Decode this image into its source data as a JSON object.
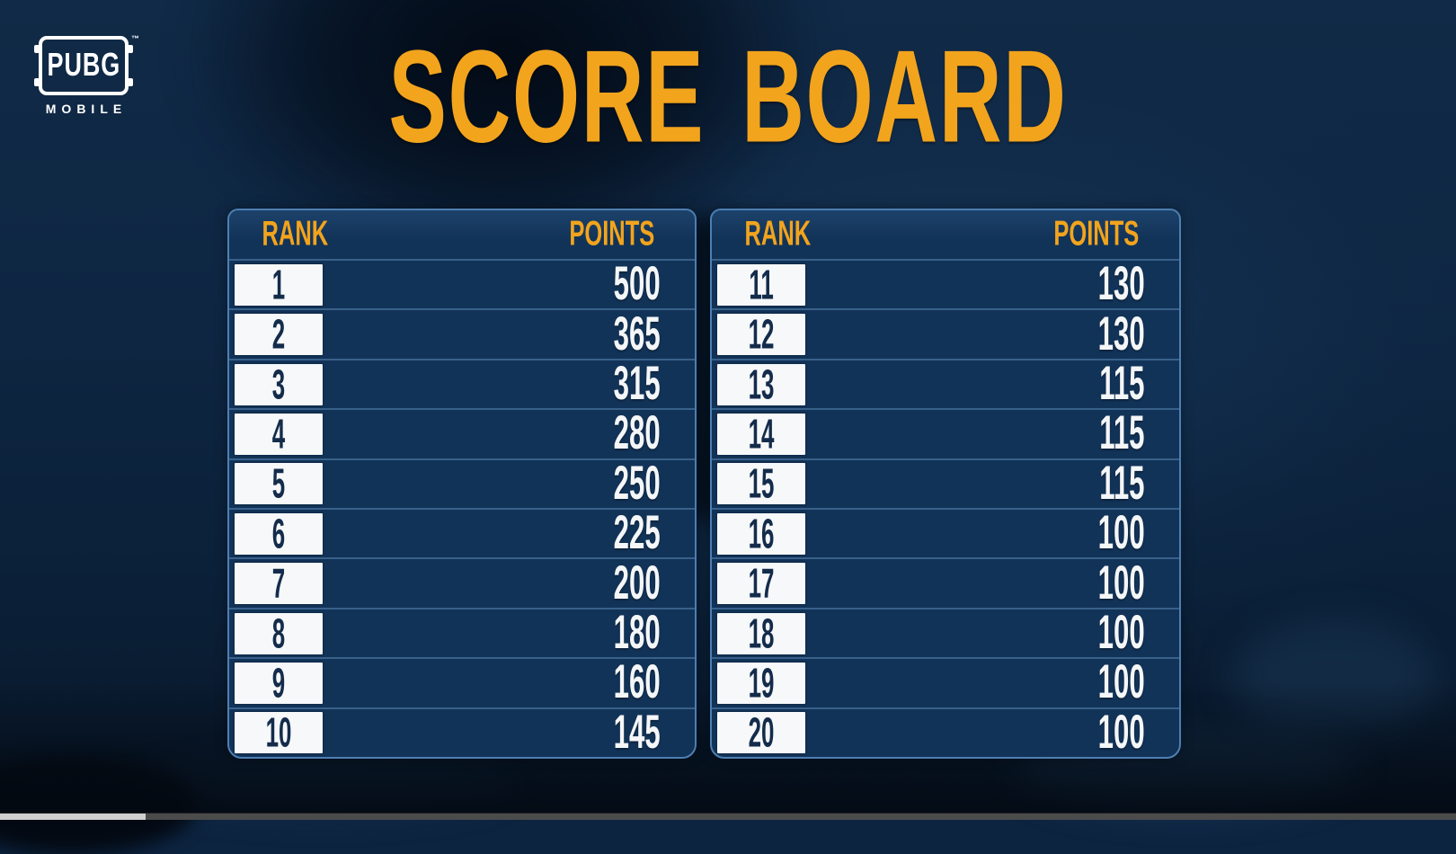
{
  "brand": {
    "logo_text": "PUBG",
    "logo_sub": "MOBILE",
    "trademark": "™"
  },
  "title": "SCORE BOARD",
  "colors": {
    "accent_orange": "#F2A41D",
    "table_bg": "#123358",
    "table_border": "#4D7FB3",
    "row_divider": "rgba(104,152,199,0.45)",
    "rank_text": "#142C4B",
    "points_text": "#F4F6F8"
  },
  "scoreboard": {
    "tables": [
      {
        "id": "ranks-1-10",
        "rank_header": "RANK",
        "points_header": "POINTS",
        "rows": [
          {
            "rank": "1",
            "points": "500"
          },
          {
            "rank": "2",
            "points": "365"
          },
          {
            "rank": "3",
            "points": "315"
          },
          {
            "rank": "4",
            "points": "280"
          },
          {
            "rank": "5",
            "points": "250"
          },
          {
            "rank": "6",
            "points": "225"
          },
          {
            "rank": "7",
            "points": "200"
          },
          {
            "rank": "8",
            "points": "180"
          },
          {
            "rank": "9",
            "points": "160"
          },
          {
            "rank": "10",
            "points": "145"
          }
        ]
      },
      {
        "id": "ranks-11-20",
        "rank_header": "RANK",
        "points_header": "POINTS",
        "rows": [
          {
            "rank": "11",
            "points": "130"
          },
          {
            "rank": "12",
            "points": "130"
          },
          {
            "rank": "13",
            "points": "115"
          },
          {
            "rank": "14",
            "points": "115"
          },
          {
            "rank": "15",
            "points": "115"
          },
          {
            "rank": "16",
            "points": "100"
          },
          {
            "rank": "17",
            "points": "100"
          },
          {
            "rank": "18",
            "points": "100"
          },
          {
            "rank": "19",
            "points": "100"
          },
          {
            "rank": "20",
            "points": "100"
          }
        ]
      }
    ]
  },
  "video_player": {
    "progress_percent": 10
  }
}
